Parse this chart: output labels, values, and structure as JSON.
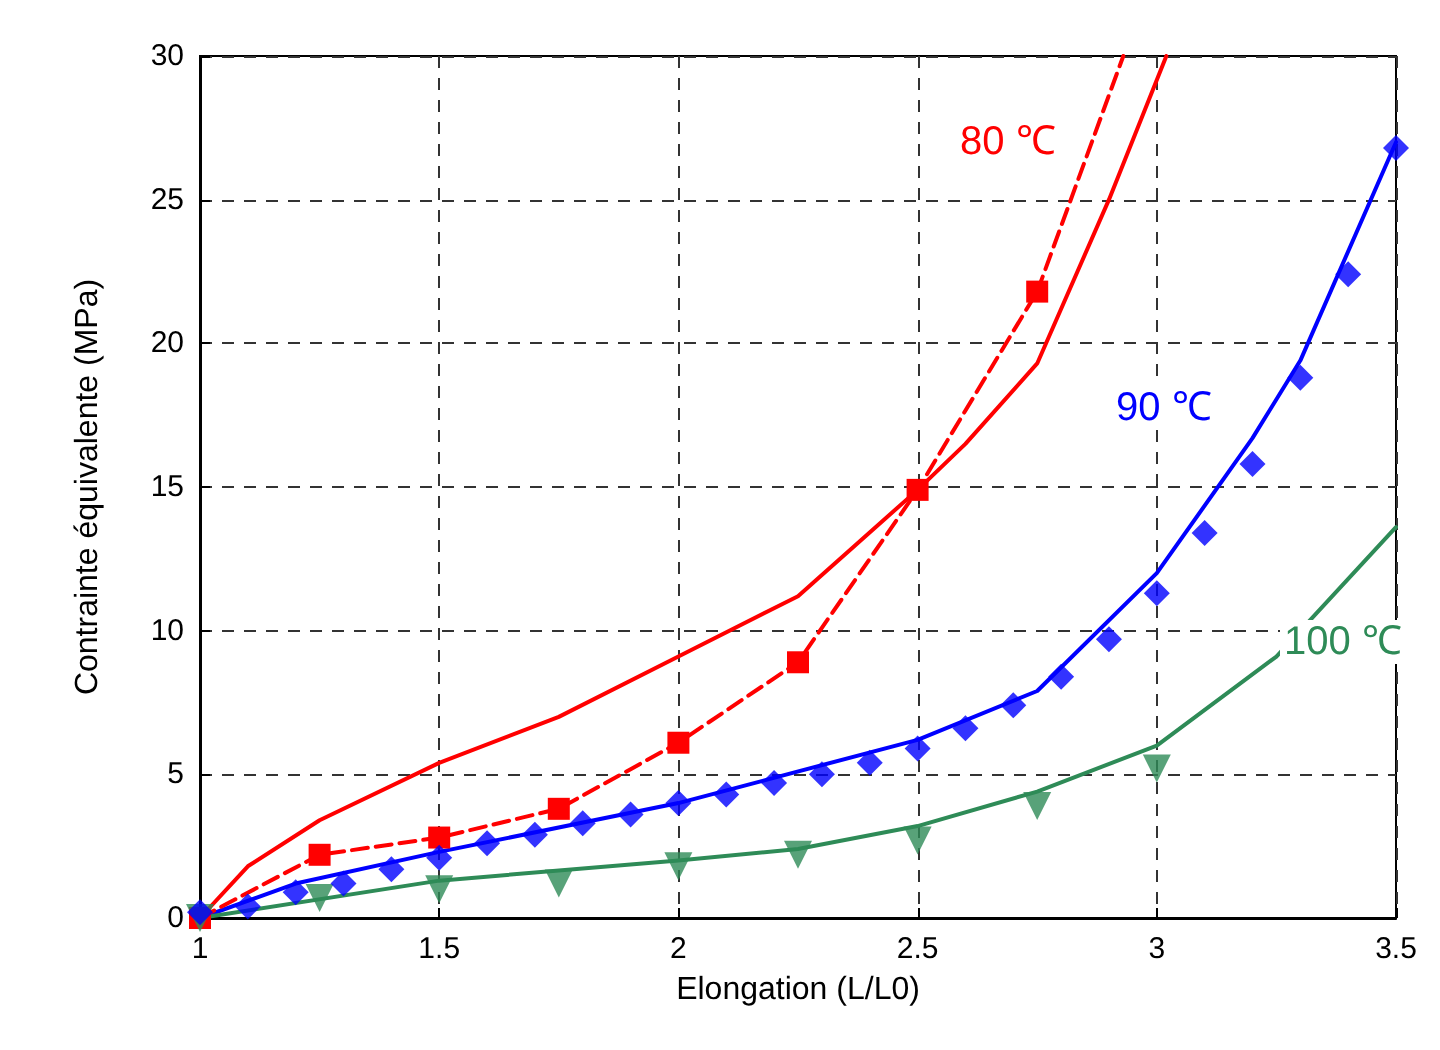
{
  "chart_data": {
    "type": "line",
    "xlabel": "Elongation (L/L0)",
    "ylabel": "Contrainte équivalente (MPa)",
    "xlim": [
      1,
      3.5
    ],
    "xticks": [
      1,
      1.5,
      2,
      2.5,
      3,
      3.5
    ],
    "ylim": [
      0,
      30
    ],
    "yticks": [
      0,
      5,
      10,
      15,
      20,
      25,
      30
    ],
    "grid": true,
    "series": [
      {
        "color": "#ff0000",
        "line_style": "solid",
        "marker": "none",
        "x": [
          1,
          1.1,
          1.25,
          1.5,
          1.75,
          2,
          2.25,
          2.5,
          2.6,
          2.75,
          2.9,
          3.02
        ],
        "values": [
          0,
          1.8,
          3.4,
          5.4,
          7.0,
          9.1,
          11.2,
          14.9,
          16.5,
          19.3,
          25,
          30
        ]
      },
      {
        "color": "#0000ff",
        "line_style": "solid",
        "marker": "none",
        "x": [
          1,
          1.2,
          1.5,
          2,
          2.5,
          2.75,
          3,
          3.2,
          3.3,
          3.5
        ],
        "values": [
          0,
          1.2,
          2.3,
          4.0,
          6.2,
          7.9,
          12.0,
          16.7,
          19.4,
          27
        ]
      },
      {
        "color": "#2e8b57",
        "line_style": "solid",
        "marker": "none",
        "x": [
          1,
          1.5,
          2,
          2.25,
          2.5,
          2.75,
          3,
          3.25,
          3.5
        ],
        "values": [
          0,
          1.3,
          2.0,
          2.4,
          3.2,
          4.4,
          6.0,
          9.1,
          13.6
        ]
      },
      {
        "color": "#ff0000",
        "line_style": "dashed",
        "marker": "square",
        "x": [
          1,
          1.25,
          1.5,
          1.75,
          2,
          2.25,
          2.5,
          2.75
        ],
        "values": [
          0,
          2.2,
          2.8,
          3.8,
          6.1,
          8.9,
          14.9,
          21.8
        ]
      },
      {
        "color": "#ff0000",
        "line_style": "dashed",
        "marker": "none",
        "x": [
          2.75,
          2.93
        ],
        "values": [
          21.8,
          30
        ]
      },
      {
        "type": "scatter",
        "color": "#0000ff",
        "marker": "diamond",
        "x": [
          1,
          1.1,
          1.2,
          1.3,
          1.4,
          1.5,
          1.6,
          1.7,
          1.8,
          1.9,
          2,
          2.1,
          2.2,
          2.3,
          2.4,
          2.5,
          2.6,
          2.7,
          2.8,
          2.9,
          3,
          3.1,
          3.2,
          3.3,
          3.4,
          3.5
        ],
        "values": [
          0.2,
          0.4,
          0.9,
          1.2,
          1.7,
          2.1,
          2.6,
          2.9,
          3.3,
          3.6,
          4.0,
          4.3,
          4.7,
          5.0,
          5.4,
          5.9,
          6.6,
          7.4,
          8.4,
          9.7,
          11.3,
          13.4,
          15.8,
          18.8,
          22.4,
          26.8
        ]
      },
      {
        "type": "scatter",
        "color": "#2e8b57",
        "marker": "triangle",
        "x": [
          1,
          1.25,
          1.5,
          1.75,
          2,
          2.25,
          2.5,
          2.75,
          3
        ],
        "values": [
          0,
          0.7,
          1.0,
          1.2,
          1.8,
          2.2,
          2.7,
          3.9,
          5.2
        ]
      }
    ],
    "annotations": [
      "80 ℃",
      "90 ℃",
      "100 ℃"
    ]
  }
}
